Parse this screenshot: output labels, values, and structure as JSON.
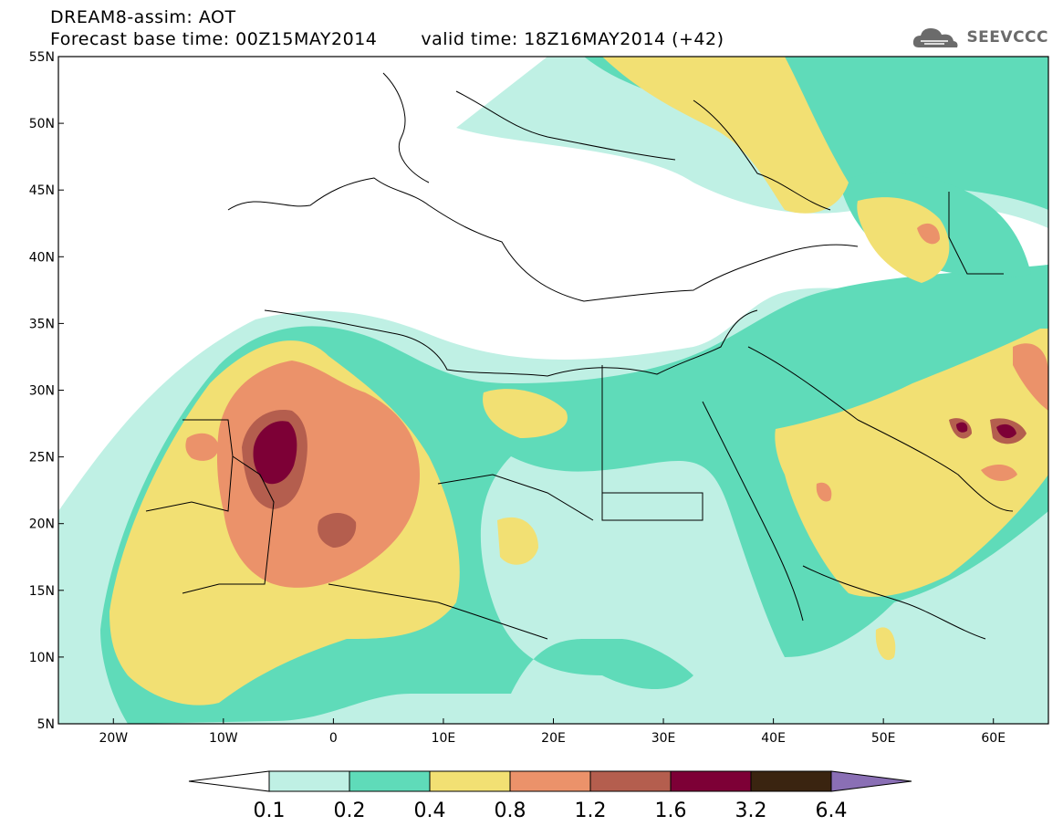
{
  "title": {
    "line1": "DREAM8-assim: AOT",
    "base_time": "Forecast base time: 00Z15MAY2014",
    "valid_time": "valid time: 18Z16MAY2014 (+42)"
  },
  "logo": {
    "text": "SEEVCCC",
    "icon": "cloud-icon"
  },
  "map": {
    "lat_ticks": [
      "55N",
      "50N",
      "45N",
      "40N",
      "35N",
      "30N",
      "25N",
      "20N",
      "15N",
      "10N",
      "5N"
    ],
    "lon_ticks": [
      "20W",
      "10W",
      "0",
      "10E",
      "20E",
      "30E",
      "40E",
      "50E",
      "60E"
    ],
    "lat_values": [
      55,
      50,
      45,
      40,
      35,
      30,
      25,
      20,
      15,
      10,
      5
    ],
    "lon_values": [
      -20,
      -10,
      0,
      10,
      20,
      30,
      40,
      50,
      60
    ],
    "lon_range": [
      -25,
      65
    ],
    "lat_range": [
      5,
      55
    ]
  },
  "colorbar": {
    "levels": [
      "0.1",
      "0.2",
      "0.4",
      "0.8",
      "1.2",
      "1.6",
      "3.2",
      "6.4"
    ],
    "colors": {
      "under": "#ffffff",
      "c1": "#bff0e4",
      "c2": "#5fdbb9",
      "c3": "#f2e073",
      "c4": "#eb926a",
      "c5": "#b45e4e",
      "c6": "#7d0036",
      "c7": "#3a2410",
      "over": "#8a6fb5"
    }
  },
  "palette": {
    "c1": "#bff0e4",
    "c2": "#5fdbb9",
    "c3": "#f2e073",
    "c4": "#eb926a",
    "c5": "#b45e4e",
    "c6": "#7d0036"
  }
}
